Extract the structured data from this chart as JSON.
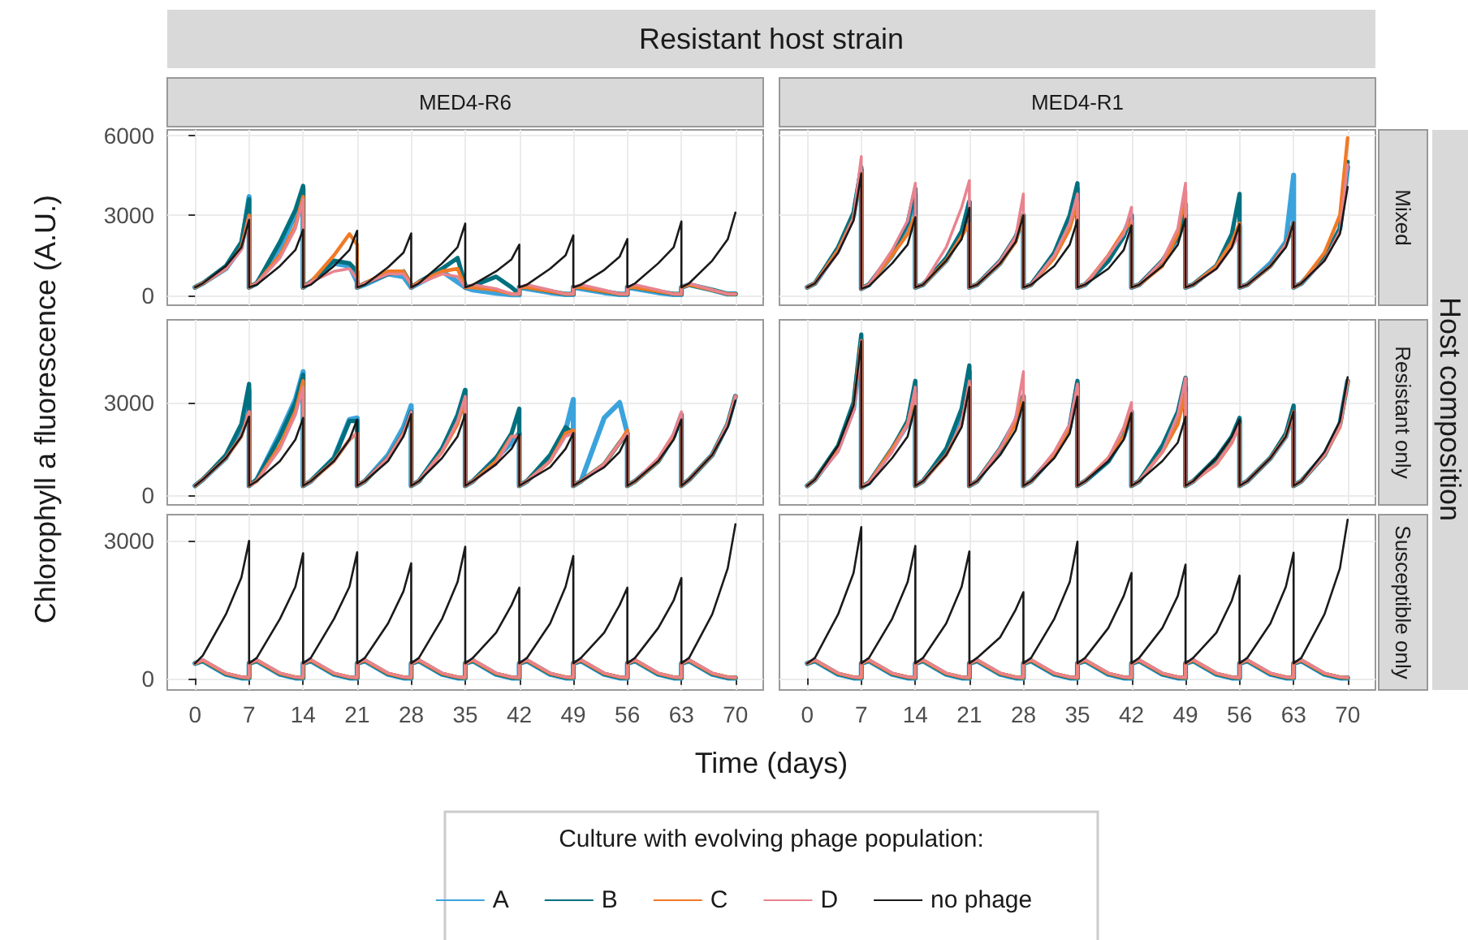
{
  "chart_data": [
    {
      "type": "other",
      "title": "Resistant host strain",
      "xlabel": "Time (days)",
      "ylabel": "Chlorophyll a fluorescence (A.U.)",
      "y2label": "Host composition"
    },
    {
      "type": "line",
      "title": "MED4-R6",
      "legend": "bottom",
      "legend_title": "Culture with evolving phage population:",
      "grid": true,
      "tick_labels": "y",
      "xlim": [
        -3.6,
        73.6
      ],
      "xticks": [
        0,
        7,
        14,
        21,
        28,
        35,
        42,
        49,
        56,
        63,
        70
      ],
      "ylim": [
        -370,
        6200
      ],
      "yticks": [
        0,
        3000,
        6000
      ],
      "x": [
        0,
        1,
        4,
        6,
        7,
        7,
        8,
        11,
        13,
        14,
        14,
        15,
        18,
        20,
        21,
        21,
        22,
        25,
        27,
        28,
        28,
        29,
        32,
        34,
        35,
        35,
        36,
        39,
        41,
        42,
        42,
        43,
        46,
        48,
        49,
        49,
        50,
        53,
        55,
        56,
        56,
        57,
        60,
        62,
        63,
        63,
        64,
        67,
        69,
        70
      ],
      "series": [
        {
          "name": "A",
          "color": "#3ba3dc",
          "values": [
            300,
            450,
            1000,
            1800,
            3700,
            300,
            450,
            1800,
            3000,
            4000,
            300,
            500,
            1200,
            1100,
            500,
            300,
            400,
            800,
            700,
            300,
            300,
            450,
            900,
            500,
            300,
            300,
            200,
            80,
            20,
            20,
            300,
            250,
            100,
            30,
            30,
            300,
            250,
            100,
            30,
            30,
            300,
            250,
            100,
            30,
            30,
            300,
            400,
            200,
            50,
            50
          ]
        },
        {
          "name": "B",
          "color": "#00707f",
          "values": [
            300,
            450,
            1100,
            2000,
            3600,
            300,
            450,
            2000,
            3200,
            4100,
            300,
            500,
            1300,
            1200,
            900,
            300,
            450,
            800,
            900,
            400,
            300,
            500,
            1000,
            1400,
            400,
            300,
            350,
            700,
            300,
            50,
            300,
            300,
            150,
            50,
            50,
            300,
            300,
            150,
            50,
            50,
            300,
            300,
            150,
            50,
            50,
            300,
            400,
            200,
            50,
            50
          ]
        },
        {
          "name": "C",
          "color": "#f07a26",
          "values": [
            300,
            450,
            1000,
            1800,
            3000,
            300,
            450,
            1500,
            2600,
            3700,
            300,
            500,
            1500,
            2300,
            1900,
            300,
            450,
            900,
            900,
            400,
            300,
            500,
            900,
            1000,
            300,
            300,
            300,
            200,
            50,
            50,
            300,
            300,
            150,
            50,
            50,
            300,
            300,
            150,
            50,
            50,
            300,
            300,
            150,
            50,
            50,
            300,
            400,
            200,
            50,
            50
          ]
        },
        {
          "name": "D",
          "color": "#e8838f",
          "values": [
            300,
            450,
            1000,
            1700,
            2900,
            300,
            450,
            1400,
            2500,
            3600,
            300,
            500,
            900,
            1000,
            600,
            300,
            450,
            800,
            800,
            400,
            300,
            450,
            800,
            700,
            300,
            300,
            400,
            250,
            50,
            50,
            300,
            400,
            200,
            50,
            50,
            300,
            400,
            200,
            50,
            50,
            300,
            400,
            200,
            50,
            50,
            300,
            450,
            200,
            50,
            50
          ]
        },
        {
          "name": "no phage",
          "color": "#1a1a1a",
          "values": [
            300,
            450,
            1100,
            1800,
            2830,
            300,
            400,
            1100,
            1700,
            2460,
            300,
            400,
            1100,
            1700,
            2420,
            300,
            400,
            1050,
            1600,
            2320,
            300,
            450,
            1200,
            1800,
            2690,
            300,
            400,
            900,
            1350,
            1900,
            300,
            400,
            1000,
            1500,
            2250,
            300,
            400,
            950,
            1450,
            2110,
            300,
            450,
            1200,
            1800,
            2770,
            300,
            450,
            1300,
            2100,
            3100
          ]
        }
      ]
    },
    {
      "type": "line",
      "title": "MED4-R1",
      "y2label": "Mixed",
      "grid": true,
      "tick_labels": false,
      "xlim": [
        -3.6,
        73.6
      ],
      "xticks": [
        0,
        7,
        14,
        21,
        28,
        35,
        42,
        49,
        56,
        63,
        70
      ],
      "ylim": [
        -370,
        6200
      ],
      "yticks": [
        0,
        3000,
        6000
      ],
      "x": [
        0,
        1,
        4,
        6,
        7,
        7,
        8,
        11,
        13,
        14,
        14,
        15,
        18,
        20,
        21,
        21,
        22,
        25,
        27,
        28,
        28,
        29,
        32,
        34,
        35,
        35,
        36,
        39,
        41,
        42,
        42,
        43,
        46,
        48,
        49,
        49,
        50,
        53,
        55,
        56,
        56,
        57,
        60,
        62,
        63,
        63,
        64,
        67,
        69,
        70
      ],
      "series": [
        {
          "name": "A",
          "color": "#3ba3dc",
          "values": [
            300,
            450,
            1700,
            3000,
            4700,
            250,
            400,
            1500,
            2600,
            3800,
            300,
            400,
            1300,
            2300,
            3500,
            300,
            400,
            1200,
            2100,
            3000,
            300,
            400,
            1500,
            2700,
            4000,
            300,
            400,
            1300,
            2300,
            3000,
            300,
            400,
            1200,
            2200,
            3400,
            300,
            400,
            1100,
            1900,
            2600,
            300,
            400,
            1200,
            2000,
            4500,
            300,
            450,
            1400,
            2500,
            4800
          ]
        },
        {
          "name": "B",
          "color": "#00707f",
          "values": [
            300,
            450,
            1800,
            3100,
            4800,
            250,
            400,
            1600,
            2700,
            4000,
            300,
            400,
            1400,
            2400,
            3500,
            300,
            400,
            1300,
            2200,
            3000,
            300,
            400,
            1600,
            3000,
            4200,
            300,
            400,
            1300,
            2200,
            3000,
            300,
            400,
            1300,
            2200,
            3000,
            300,
            400,
            1100,
            2300,
            3800,
            300,
            400,
            1100,
            1900,
            2700,
            300,
            450,
            1400,
            2500,
            5000
          ]
        },
        {
          "name": "C",
          "color": "#f07a26",
          "values": [
            300,
            450,
            1700,
            2900,
            4600,
            250,
            400,
            1500,
            2300,
            3000,
            300,
            400,
            1300,
            2200,
            2700,
            300,
            400,
            1200,
            2000,
            3000,
            300,
            400,
            1400,
            2500,
            3500,
            300,
            400,
            1500,
            2400,
            2800,
            300,
            400,
            1100,
            2300,
            3900,
            300,
            400,
            1100,
            2000,
            2700,
            300,
            400,
            1100,
            1900,
            2700,
            300,
            450,
            1600,
            3000,
            5900
          ]
        },
        {
          "name": "D",
          "color": "#e8838f",
          "values": [
            300,
            450,
            1600,
            2900,
            5200,
            250,
            400,
            1700,
            2800,
            4200,
            300,
            400,
            1800,
            3300,
            4300,
            300,
            400,
            1300,
            2200,
            3800,
            300,
            400,
            1500,
            2700,
            3800,
            300,
            400,
            1500,
            2300,
            3300,
            300,
            400,
            1300,
            2500,
            4200,
            300,
            400,
            1000,
            1800,
            2300,
            300,
            400,
            1100,
            1900,
            2700,
            300,
            450,
            1300,
            2400,
            4900
          ]
        },
        {
          "name": "no phage",
          "color": "#1a1a1a",
          "values": [
            300,
            450,
            1600,
            2800,
            4570,
            250,
            350,
            1200,
            1900,
            2930,
            300,
            400,
            1300,
            2100,
            3280,
            300,
            400,
            1200,
            2000,
            3000,
            300,
            400,
            1100,
            1900,
            2830,
            300,
            400,
            1000,
            1700,
            2620,
            300,
            400,
            1100,
            1900,
            2870,
            300,
            400,
            1000,
            1800,
            2670,
            300,
            400,
            1100,
            1800,
            2730,
            300,
            450,
            1300,
            2300,
            4060
          ]
        }
      ]
    },
    {
      "type": "line",
      "grid": true,
      "tick_labels": "y",
      "xlim": [
        -3.6,
        73.6
      ],
      "xticks": [
        0,
        7,
        14,
        21,
        28,
        35,
        42,
        49,
        56,
        63,
        70
      ],
      "ylim": [
        -320,
        5680
      ],
      "yticks": [
        0,
        3000
      ],
      "x": [
        0,
        1,
        4,
        6,
        7,
        7,
        8,
        11,
        13,
        14,
        14,
        15,
        18,
        20,
        21,
        21,
        22,
        25,
        27,
        28,
        28,
        29,
        32,
        34,
        35,
        35,
        36,
        39,
        41,
        42,
        42,
        43,
        46,
        48,
        49,
        49,
        50,
        53,
        55,
        56,
        56,
        57,
        60,
        62,
        63,
        63,
        64,
        67,
        69,
        70
      ],
      "series": [
        {
          "name": "A",
          "color": "#3ba3dc",
          "values": [
            300,
            500,
            1200,
            2100,
            3400,
            300,
            500,
            2000,
            3100,
            4000,
            300,
            450,
            1200,
            2450,
            2500,
            300,
            450,
            1300,
            2200,
            2900,
            300,
            450,
            1500,
            2500,
            3400,
            300,
            450,
            1200,
            1700,
            2000,
            300,
            450,
            1200,
            2100,
            3100,
            300,
            450,
            2500,
            3000,
            2000,
            300,
            450,
            1100,
            1900,
            2600,
            300,
            500,
            1300,
            2300,
            3200
          ]
        },
        {
          "name": "B",
          "color": "#00707f",
          "values": [
            300,
            500,
            1300,
            2300,
            3600,
            300,
            500,
            1900,
            3000,
            3900,
            300,
            450,
            1200,
            2400,
            2400,
            300,
            450,
            1200,
            2000,
            2700,
            300,
            450,
            1500,
            2600,
            3400,
            300,
            450,
            1200,
            2000,
            2800,
            300,
            450,
            1300,
            2200,
            2000,
            300,
            450,
            1000,
            1700,
            2000,
            300,
            450,
            1100,
            1900,
            2600,
            300,
            500,
            1300,
            2300,
            3200
          ]
        },
        {
          "name": "C",
          "color": "#f07a26",
          "values": [
            300,
            500,
            1200,
            1900,
            2700,
            300,
            450,
            1600,
            2700,
            3700,
            300,
            450,
            1100,
            1800,
            2000,
            300,
            450,
            1200,
            2000,
            2600,
            300,
            450,
            1400,
            2300,
            3100,
            300,
            450,
            1100,
            1900,
            1900,
            300,
            450,
            1100,
            2000,
            2100,
            300,
            450,
            1000,
            1700,
            2100,
            300,
            450,
            1100,
            1900,
            2600,
            300,
            500,
            1300,
            2300,
            3200
          ]
        },
        {
          "name": "D",
          "color": "#e8838f",
          "values": [
            300,
            500,
            1200,
            1900,
            2700,
            300,
            450,
            1500,
            2600,
            3500,
            300,
            450,
            1100,
            1800,
            2000,
            300,
            450,
            1200,
            2000,
            2700,
            300,
            450,
            1400,
            2400,
            3200,
            300,
            450,
            1000,
            1900,
            1900,
            300,
            450,
            1100,
            1900,
            2000,
            300,
            450,
            1000,
            1700,
            2000,
            300,
            450,
            1200,
            2000,
            2700,
            300,
            500,
            1300,
            2300,
            3200
          ]
        },
        {
          "name": "no phage",
          "color": "#1a1a1a",
          "values": [
            300,
            500,
            1200,
            1900,
            2540,
            300,
            450,
            1100,
            1800,
            2500,
            300,
            450,
            1100,
            1800,
            2450,
            300,
            450,
            1100,
            1900,
            2620,
            300,
            450,
            1200,
            1900,
            2620,
            300,
            450,
            1000,
            1500,
            1960,
            300,
            450,
            900,
            1500,
            2010,
            300,
            450,
            900,
            1400,
            1920,
            300,
            450,
            1100,
            1800,
            2450,
            300,
            500,
            1300,
            2200,
            3060
          ]
        }
      ]
    },
    {
      "type": "line",
      "y2label": "Resistant only",
      "grid": true,
      "tick_labels": false,
      "xlim": [
        -3.6,
        73.6
      ],
      "xticks": [
        0,
        7,
        14,
        21,
        28,
        35,
        42,
        49,
        56,
        63,
        70
      ],
      "ylim": [
        -320,
        5680
      ],
      "yticks": [
        0,
        3000
      ],
      "x": [
        0,
        1,
        4,
        6,
        7,
        7,
        8,
        11,
        13,
        14,
        14,
        15,
        18,
        20,
        21,
        21,
        22,
        25,
        27,
        28,
        28,
        29,
        32,
        34,
        35,
        35,
        36,
        39,
        41,
        42,
        42,
        43,
        46,
        48,
        49,
        49,
        50,
        53,
        55,
        56,
        56,
        57,
        60,
        62,
        63,
        63,
        64,
        67,
        69,
        70
      ],
      "series": [
        {
          "name": "A",
          "color": "#3ba3dc",
          "values": [
            300,
            500,
            1500,
            2800,
            5000,
            250,
            400,
            1500,
            2300,
            3500,
            300,
            450,
            1400,
            2500,
            4000,
            300,
            450,
            1500,
            2400,
            3200,
            300,
            450,
            1300,
            2200,
            3600,
            300,
            450,
            1100,
            1900,
            2700,
            300,
            450,
            1500,
            2500,
            3500,
            300,
            450,
            1100,
            1800,
            2400,
            300,
            450,
            1200,
            1900,
            2700,
            300,
            450,
            1300,
            2300,
            3700
          ]
        },
        {
          "name": "B",
          "color": "#00707f",
          "values": [
            300,
            500,
            1600,
            3000,
            5200,
            250,
            400,
            1500,
            2400,
            3700,
            300,
            450,
            1500,
            2800,
            4200,
            300,
            450,
            1500,
            2400,
            3200,
            300,
            450,
            1300,
            2200,
            3700,
            300,
            450,
            1100,
            1900,
            2700,
            300,
            450,
            1600,
            2700,
            3800,
            300,
            450,
            1200,
            1900,
            2500,
            300,
            450,
            1200,
            2000,
            2900,
            300,
            450,
            1300,
            2300,
            3700
          ]
        },
        {
          "name": "C",
          "color": "#f07a26",
          "values": [
            300,
            500,
            1500,
            2800,
            5000,
            250,
            400,
            1500,
            2300,
            3300,
            300,
            450,
            1300,
            2300,
            3600,
            300,
            450,
            1500,
            2300,
            3200,
            300,
            450,
            1300,
            2200,
            3500,
            300,
            450,
            1200,
            1900,
            2700,
            300,
            450,
            1400,
            2300,
            3300,
            300,
            450,
            1000,
            1700,
            2300,
            300,
            450,
            1200,
            1900,
            2700,
            300,
            450,
            1300,
            2200,
            3700
          ]
        },
        {
          "name": "D",
          "color": "#e8838f",
          "values": [
            300,
            500,
            1400,
            2700,
            5000,
            250,
            400,
            1400,
            2300,
            3500,
            300,
            450,
            1300,
            2300,
            3700,
            300,
            450,
            1500,
            2500,
            4000,
            300,
            450,
            1400,
            2300,
            3600,
            300,
            450,
            1200,
            2200,
            3000,
            300,
            450,
            1400,
            2600,
            3800,
            300,
            450,
            1000,
            1700,
            2300,
            300,
            450,
            1200,
            1900,
            2700,
            300,
            450,
            1300,
            2200,
            3700
          ]
        },
        {
          "name": "no phage",
          "color": "#1a1a1a",
          "values": [
            300,
            500,
            1600,
            2900,
            4990,
            250,
            350,
            1200,
            1900,
            2890,
            300,
            450,
            1300,
            2200,
            3500,
            300,
            450,
            1300,
            2100,
            3010,
            300,
            450,
            1200,
            2000,
            3190,
            300,
            450,
            1100,
            1800,
            2660,
            300,
            450,
            1100,
            1700,
            2540,
            300,
            450,
            1200,
            1900,
            2450,
            300,
            450,
            1200,
            1900,
            2710,
            300,
            450,
            1400,
            2400,
            3820
          ]
        }
      ]
    },
    {
      "type": "line",
      "grid": true,
      "xlim": [
        -3.6,
        73.6
      ],
      "xticks": [
        0,
        7,
        14,
        21,
        28,
        35,
        42,
        49,
        56,
        63,
        70
      ],
      "ylim": [
        -250,
        3570
      ],
      "yticks": [
        0,
        3000
      ],
      "x": [
        0,
        1,
        4,
        6,
        7,
        7,
        8,
        11,
        13,
        14,
        14,
        15,
        18,
        20,
        21,
        21,
        22,
        25,
        27,
        28,
        28,
        29,
        32,
        34,
        35,
        35,
        36,
        39,
        41,
        42,
        42,
        43,
        46,
        48,
        49,
        49,
        50,
        53,
        55,
        56,
        56,
        57,
        60,
        62,
        63,
        63,
        64,
        67,
        69,
        70
      ],
      "series": [
        {
          "name": "A",
          "color": "#3ba3dc",
          "values": [
            330,
            380,
            90,
            10,
            10,
            330,
            380,
            90,
            10,
            10,
            330,
            380,
            90,
            10,
            10,
            330,
            380,
            90,
            10,
            10,
            330,
            380,
            90,
            10,
            10,
            330,
            380,
            90,
            10,
            10,
            330,
            380,
            90,
            10,
            10,
            330,
            380,
            90,
            10,
            10,
            330,
            380,
            90,
            10,
            10,
            330,
            380,
            90,
            10,
            10
          ]
        },
        {
          "name": "B",
          "color": "#00707f",
          "values": [
            330,
            390,
            100,
            20,
            20,
            330,
            390,
            100,
            20,
            20,
            330,
            390,
            100,
            20,
            20,
            330,
            390,
            100,
            20,
            20,
            330,
            390,
            100,
            20,
            20,
            330,
            390,
            100,
            20,
            20,
            330,
            390,
            100,
            20,
            20,
            330,
            390,
            100,
            20,
            20,
            330,
            390,
            100,
            20,
            20,
            330,
            390,
            100,
            20,
            20
          ]
        },
        {
          "name": "C",
          "color": "#f07a26",
          "values": [
            330,
            400,
            110,
            30,
            20,
            330,
            400,
            110,
            30,
            20,
            330,
            400,
            110,
            30,
            20,
            330,
            400,
            110,
            30,
            20,
            330,
            400,
            110,
            30,
            20,
            330,
            400,
            110,
            30,
            20,
            330,
            400,
            110,
            30,
            20,
            330,
            400,
            110,
            30,
            20,
            330,
            400,
            110,
            30,
            20,
            330,
            400,
            110,
            30,
            20
          ]
        },
        {
          "name": "D",
          "color": "#e8838f",
          "values": [
            330,
            410,
            120,
            30,
            30,
            330,
            410,
            120,
            30,
            30,
            330,
            410,
            120,
            30,
            30,
            330,
            410,
            120,
            30,
            30,
            330,
            410,
            120,
            30,
            30,
            330,
            410,
            120,
            30,
            30,
            330,
            410,
            120,
            30,
            30,
            330,
            410,
            120,
            30,
            30,
            330,
            410,
            120,
            30,
            30,
            330,
            410,
            120,
            30,
            30
          ]
        },
        {
          "name": "no phage",
          "color": "#1a1a1a",
          "values": [
            330,
            500,
            1400,
            2200,
            3000,
            330,
            450,
            1300,
            2000,
            2730,
            330,
            450,
            1300,
            2000,
            2750,
            330,
            450,
            1200,
            1900,
            2510,
            330,
            450,
            1300,
            2100,
            2870,
            330,
            450,
            1000,
            1600,
            1980,
            330,
            450,
            1200,
            2000,
            2670,
            330,
            450,
            1000,
            1600,
            1980,
            330,
            450,
            1100,
            1700,
            2190,
            330,
            450,
            1400,
            2400,
            3360
          ]
        }
      ]
    },
    {
      "type": "line",
      "y2label": "Susceptible only",
      "grid": true,
      "tick_labels": "x",
      "xlim": [
        -3.6,
        73.6
      ],
      "xticks": [
        0,
        7,
        14,
        21,
        28,
        35,
        42,
        49,
        56,
        63,
        70
      ],
      "ylim": [
        -250,
        3570
      ],
      "yticks": [
        0,
        3000
      ],
      "x": [
        0,
        1,
        4,
        6,
        7,
        7,
        8,
        11,
        13,
        14,
        14,
        15,
        18,
        20,
        21,
        21,
        22,
        25,
        27,
        28,
        28,
        29,
        32,
        34,
        35,
        35,
        36,
        39,
        41,
        42,
        42,
        43,
        46,
        48,
        49,
        49,
        50,
        53,
        55,
        56,
        56,
        57,
        60,
        62,
        63,
        63,
        64,
        67,
        69,
        70
      ],
      "series": [
        {
          "name": "A",
          "color": "#3ba3dc",
          "values": [
            330,
            380,
            90,
            10,
            10,
            330,
            380,
            90,
            10,
            10,
            330,
            380,
            90,
            10,
            10,
            330,
            380,
            90,
            10,
            10,
            330,
            380,
            90,
            10,
            10,
            330,
            380,
            90,
            10,
            10,
            330,
            380,
            90,
            10,
            10,
            330,
            380,
            90,
            10,
            10,
            330,
            380,
            90,
            10,
            10,
            330,
            380,
            90,
            10,
            10
          ]
        },
        {
          "name": "B",
          "color": "#00707f",
          "values": [
            330,
            390,
            100,
            20,
            20,
            330,
            390,
            100,
            20,
            20,
            330,
            390,
            100,
            20,
            20,
            330,
            390,
            100,
            20,
            20,
            330,
            390,
            100,
            20,
            20,
            330,
            390,
            100,
            20,
            20,
            330,
            390,
            100,
            20,
            20,
            330,
            390,
            100,
            20,
            20,
            330,
            390,
            100,
            20,
            20,
            330,
            390,
            100,
            20,
            20
          ]
        },
        {
          "name": "C",
          "color": "#f07a26",
          "values": [
            330,
            400,
            110,
            30,
            20,
            330,
            400,
            110,
            30,
            20,
            330,
            400,
            110,
            30,
            20,
            330,
            400,
            110,
            30,
            20,
            330,
            400,
            110,
            30,
            20,
            330,
            400,
            110,
            30,
            20,
            330,
            400,
            110,
            30,
            20,
            330,
            400,
            110,
            30,
            20,
            330,
            400,
            110,
            30,
            20,
            330,
            400,
            110,
            30,
            20
          ]
        },
        {
          "name": "D",
          "color": "#e8838f",
          "values": [
            330,
            410,
            120,
            30,
            30,
            330,
            410,
            120,
            30,
            30,
            330,
            410,
            120,
            30,
            30,
            330,
            410,
            120,
            30,
            30,
            330,
            410,
            120,
            30,
            30,
            330,
            410,
            120,
            30,
            30,
            330,
            410,
            120,
            30,
            30,
            330,
            410,
            120,
            30,
            30,
            330,
            410,
            120,
            30,
            30,
            330,
            410,
            120,
            30,
            30
          ]
        },
        {
          "name": "no phage",
          "color": "#1a1a1a",
          "values": [
            330,
            450,
            1400,
            2300,
            3300,
            330,
            450,
            1300,
            2100,
            2890,
            330,
            450,
            1200,
            2000,
            2770,
            330,
            450,
            900,
            1500,
            1880,
            330,
            450,
            1300,
            2100,
            2980,
            330,
            450,
            1100,
            1800,
            2300,
            330,
            450,
            1100,
            1800,
            2480,
            330,
            450,
            1000,
            1700,
            2240,
            330,
            450,
            1200,
            2000,
            2740,
            330,
            450,
            1400,
            2400,
            3460
          ]
        }
      ]
    }
  ]
}
